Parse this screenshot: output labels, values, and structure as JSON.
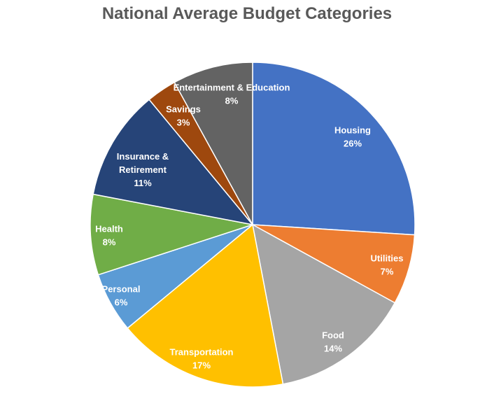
{
  "chart_data": {
    "type": "pie",
    "title": "National Average Budget Categories",
    "slices": [
      {
        "label": [
          "Housing"
        ],
        "value": 26,
        "pct_label": "26%",
        "color": "#4472C4"
      },
      {
        "label": [
          "Utilities"
        ],
        "value": 7,
        "pct_label": "7%",
        "color": "#ED7D31"
      },
      {
        "label": [
          "Food"
        ],
        "value": 14,
        "pct_label": "14%",
        "color": "#A5A5A5"
      },
      {
        "label": [
          "Transportation"
        ],
        "value": 17,
        "pct_label": "17%",
        "color": "#FFC000"
      },
      {
        "label": [
          "Personal"
        ],
        "value": 6,
        "pct_label": "6%",
        "color": "#5B9BD5"
      },
      {
        "label": [
          "Health"
        ],
        "value": 8,
        "pct_label": "8%",
        "color": "#70AD47"
      },
      {
        "label": [
          "Insurance &",
          "Retirement"
        ],
        "value": 11,
        "pct_label": "11%",
        "color": "#264478"
      },
      {
        "label": [
          "Savings"
        ],
        "value": 3,
        "pct_label": "3%",
        "color": "#9E480E"
      },
      {
        "label": [
          "Entertainment & Education"
        ],
        "value": 8,
        "pct_label": "8%",
        "color": "#636363"
      }
    ],
    "start_angle": "12 o'clock",
    "direction": "clockwise",
    "legend": "none"
  }
}
